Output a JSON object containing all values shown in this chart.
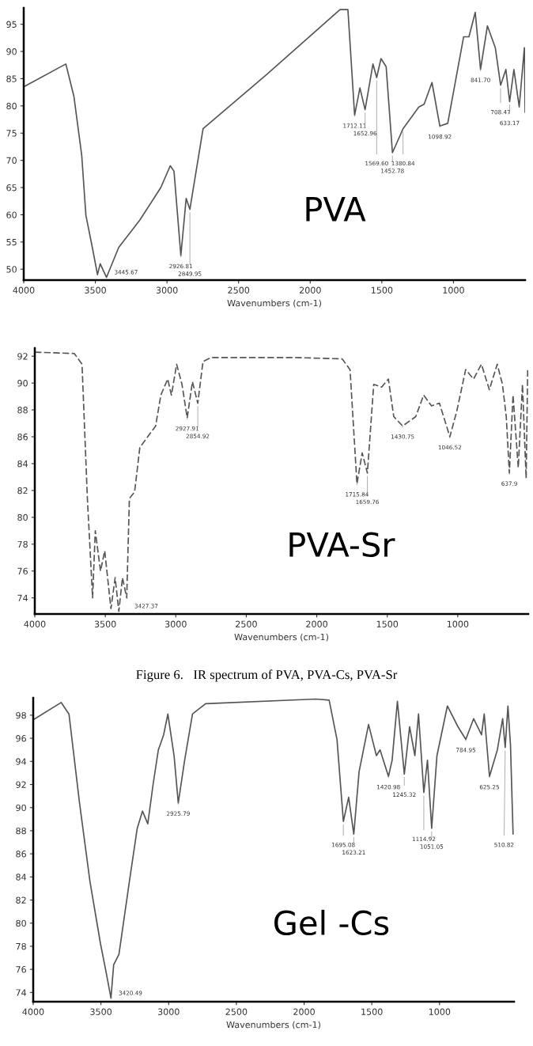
{
  "chart_data": [
    {
      "type": "line",
      "xlabel": "Wavenumbers (cm-1)",
      "xlim": [
        4000,
        500
      ],
      "xticks": [
        4000,
        3500,
        3000,
        2500,
        2000,
        1500,
        1000
      ],
      "ylim": [
        48,
        98
      ],
      "yticks": [
        50,
        55,
        60,
        65,
        70,
        75,
        80,
        85,
        90,
        95
      ],
      "grid": false,
      "legend": false,
      "series": [
        {
          "color": "#555555",
          "x": [
            4000,
            3706,
            3650,
            3595,
            3566,
            3521,
            3485,
            3466,
            3422,
            3337,
            3190,
            3043,
            2977,
            2951,
            2903,
            2866,
            2840,
            2748,
            2307,
            1792,
            1737,
            1690,
            1653,
            1617,
            1562,
            1536,
            1506,
            1470,
            1426,
            1352,
            1242,
            1205,
            1150,
            1095,
            1040,
            929,
            892,
            848,
            811,
            763,
            708,
            671,
            634,
            608,
            578,
            541,
            505,
            500
          ],
          "values": [
            83.5,
            87.7,
            81.8,
            70.9,
            59.9,
            54,
            49,
            51,
            48.5,
            54,
            59,
            65,
            69,
            68,
            52.5,
            63,
            61,
            75.8,
            85.7,
            97.7,
            97.7,
            78.3,
            83.3,
            79.3,
            87.7,
            85.2,
            88.7,
            87.2,
            71.4,
            75.8,
            79.8,
            80.3,
            84.3,
            76.3,
            76.8,
            92.7,
            92.7,
            97.2,
            86.7,
            94.7,
            90.7,
            83.8,
            86.7,
            80.8,
            86.7,
            79.8,
            90.7,
            78.8
          ]
        }
      ],
      "annotations": [
        "PVA",
        {
          "text": "3445.67",
          "x": 3422,
          "y": 48.5
        },
        {
          "text": "2926.81",
          "x": 2903,
          "y": 52.5
        },
        {
          "text": "2849.95",
          "x": 2840,
          "y": 61
        },
        {
          "text": "1712.11",
          "x": 1690,
          "y": 78.3
        },
        {
          "text": "1652.96",
          "x": 1617,
          "y": 79.3
        },
        {
          "text": "1569.60",
          "x": 1536,
          "y": 85.2
        },
        {
          "text": "1452.78",
          "x": 1426,
          "y": 71.4
        },
        {
          "text": "1380.84",
          "x": 1352,
          "y": 75.8
        },
        {
          "text": "1098.92",
          "x": 1095,
          "y": 76.3
        },
        {
          "text": "841.70",
          "x": 811,
          "y": 86.7
        },
        {
          "text": "708.47",
          "x": 671,
          "y": 83.8
        },
        {
          "text": "633.17",
          "x": 608,
          "y": 80.8
        }
      ]
    },
    {
      "type": "line",
      "xlabel": "Wavenumbers (cm-1)",
      "xlim": [
        4000,
        500
      ],
      "xticks": [
        4000,
        3500,
        3000,
        2500,
        2000,
        1500,
        1000
      ],
      "ylim": [
        72.8,
        92.6
      ],
      "yticks": [
        74,
        76,
        78,
        80,
        82,
        84,
        86,
        88,
        90,
        92
      ],
      "grid": false,
      "legend": false,
      "series": [
        {
          "color": "#555555",
          "line_style": "dashed",
          "x": [
            4000,
            3720,
            3665,
            3627,
            3590,
            3571,
            3534,
            3504,
            3460,
            3430,
            3404,
            3378,
            3348,
            3329,
            3292,
            3255,
            3199,
            3143,
            3106,
            3057,
            3031,
            2994,
            2956,
            2919,
            2882,
            2844,
            2807,
            2751,
            2453,
            2155,
            1820,
            1764,
            1715,
            1678,
            1641,
            1596,
            1540,
            1492,
            1454,
            1391,
            1298,
            1242,
            1186,
            1130,
            1056,
            1007,
            944,
            888,
            832,
            776,
            720,
            683,
            656,
            634,
            608,
            571,
            541,
            515,
            504
          ],
          "values": [
            92.3,
            92.2,
            91.4,
            81.4,
            74,
            79,
            76,
            77.5,
            73.2,
            75.5,
            73.0,
            75.5,
            74,
            81.4,
            81.9,
            85.2,
            86,
            86.8,
            89.1,
            90.3,
            89.1,
            91.4,
            89.9,
            87.4,
            90.1,
            88.5,
            91.6,
            91.9,
            91.9,
            91.9,
            91.8,
            91,
            82.5,
            84.8,
            83.3,
            89.9,
            89.7,
            90.3,
            87.5,
            86.8,
            87.5,
            89.1,
            88.3,
            88.5,
            86,
            87.9,
            91,
            90.3,
            91.4,
            89.5,
            91.4,
            89.9,
            87.5,
            83.3,
            89.1,
            83.7,
            89.9,
            82.9,
            91
          ]
        }
      ],
      "annotations": [
        "PVA-Sr",
        "Figure 6.   IR spectrum of PVA, PVA-Cs, PVA-Sr",
        {
          "text": "3427.37",
          "x": 3348,
          "y": 74
        },
        {
          "text": "2927.91",
          "x": 2919,
          "y": 87.4
        },
        {
          "text": "2854.92",
          "x": 2844,
          "y": 88.5
        },
        {
          "text": "1715.84",
          "x": 1715,
          "y": 82.5
        },
        {
          "text": "1659.76",
          "x": 1641,
          "y": 83.3
        },
        {
          "text": "1430.75",
          "x": 1391,
          "y": 86.8
        },
        {
          "text": "1046.52",
          "x": 1056,
          "y": 86
        },
        {
          "text": "637.9",
          "x": 634,
          "y": 83.3
        }
      ]
    },
    {
      "type": "line",
      "xlabel": "Wavenumbers (cm-1)",
      "xlim": [
        4000,
        450
      ],
      "xticks": [
        4000,
        3500,
        3000,
        2500,
        2000,
        1500,
        1000
      ],
      "ylim": [
        73.2,
        99.5
      ],
      "yticks": [
        74,
        76,
        78,
        80,
        82,
        84,
        86,
        88,
        90,
        92,
        94,
        96,
        98
      ],
      "grid": false,
      "legend": false,
      "series": [
        {
          "color": "#555555",
          "x": [
            4000,
            3794,
            3736,
            3658,
            3581,
            3503,
            3464,
            3426,
            3406,
            3367,
            3290,
            3232,
            3193,
            3154,
            3115,
            3076,
            3037,
            3006,
            2960,
            2929,
            2882,
            2824,
            2727,
            1912,
            1815,
            1757,
            1710,
            1671,
            1633,
            1594,
            1524,
            1466,
            1439,
            1377,
            1350,
            1311,
            1260,
            1221,
            1182,
            1155,
            1116,
            1089,
            1058,
            1019,
            942,
            864,
            806,
            748,
            690,
            670,
            631,
            573,
            534,
            515,
            495,
            476,
            457
          ],
          "values": [
            97.6,
            99.1,
            98.1,
            90.4,
            83.6,
            78.2,
            75.9,
            73.5,
            76.4,
            77.3,
            83.6,
            88.2,
            89.7,
            88.6,
            92,
            95,
            96.3,
            98.1,
            94.5,
            90.4,
            94.1,
            98.1,
            99,
            99.4,
            99.3,
            95.9,
            88.8,
            90.9,
            87.7,
            93.1,
            97.2,
            94.5,
            95,
            92.7,
            94.1,
            99.2,
            92.9,
            97,
            94.5,
            98.1,
            91.3,
            94.1,
            88.2,
            94.5,
            98.8,
            97,
            95.9,
            97.7,
            96.3,
            98.1,
            92.7,
            95,
            97.7,
            95.2,
            98.8,
            95.4,
            87.7
          ]
        }
      ],
      "annotations": [
        "Gel -Cs",
        {
          "text": "3420.49",
          "x": 3426,
          "y": 73.5
        },
        {
          "text": "2925.79",
          "x": 2929,
          "y": 90.4
        },
        {
          "text": "1695.08",
          "x": 1710,
          "y": 88.8
        },
        {
          "text": "1623.21",
          "x": 1633,
          "y": 87.7
        },
        {
          "text": "1420.98",
          "x": 1377,
          "y": 92.7
        },
        {
          "text": "1245.32",
          "x": 1260,
          "y": 92.9
        },
        {
          "text": "1114.92",
          "x": 1116,
          "y": 91.3
        },
        {
          "text": "1051.05",
          "x": 1058,
          "y": 88.2
        },
        {
          "text": "784.95",
          "x": 806,
          "y": 95.9
        },
        {
          "text": "625.25",
          "x": 631,
          "y": 92.7
        },
        {
          "text": "510.82",
          "x": 515,
          "y": 95.2
        }
      ]
    }
  ]
}
